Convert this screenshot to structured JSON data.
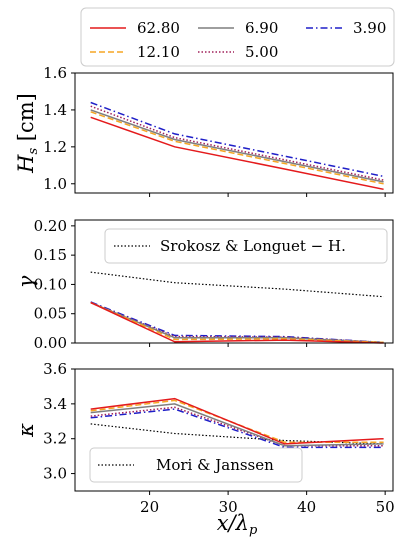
{
  "legend": {
    "entries": [
      {
        "label": "62.80",
        "color": "#e41a1c",
        "dash": "solid"
      },
      {
        "label": "12.10",
        "color": "#f5a623",
        "dash": "dashed"
      },
      {
        "label": "6.90",
        "color": "#7f7f7f",
        "dash": "solid"
      },
      {
        "label": "5.00",
        "color": "#a0205a",
        "dash": "dotted"
      },
      {
        "label": "3.90",
        "color": "#1f1fc8",
        "dash": "dashdot"
      }
    ]
  },
  "chart_data": [
    {
      "type": "line",
      "ylabel": "H_s [cm]",
      "ylim": [
        0.95,
        1.6
      ],
      "yticks": [
        "1.0",
        "1.2",
        "1.4",
        "1.6"
      ],
      "xlim": [
        10.5,
        51
      ],
      "x": [
        12.5,
        23.2,
        37.2,
        49.8
      ],
      "series": [
        {
          "name": "62.80",
          "values": [
            1.36,
            1.2,
            1.08,
            0.97
          ]
        },
        {
          "name": "12.10",
          "values": [
            1.39,
            1.23,
            1.11,
            1.0
          ]
        },
        {
          "name": "6.90",
          "values": [
            1.4,
            1.24,
            1.12,
            1.01
          ]
        },
        {
          "name": "5.00",
          "values": [
            1.42,
            1.25,
            1.13,
            1.02
          ]
        },
        {
          "name": "3.90",
          "values": [
            1.44,
            1.27,
            1.15,
            1.04
          ]
        }
      ]
    },
    {
      "type": "line",
      "ylabel": "γ",
      "ylim": [
        0.0,
        0.21
      ],
      "yticks": [
        "0.00",
        "0.05",
        "0.10",
        "0.15",
        "0.20"
      ],
      "xlim": [
        10.5,
        51
      ],
      "x": [
        12.5,
        23.2,
        37.2,
        49.8
      ],
      "reference": {
        "name": "Srokosz & Longuet − H.",
        "values": [
          0.121,
          0.103,
          0.092,
          0.079
        ]
      },
      "legend_position": "upper-right",
      "series": [
        {
          "name": "62.80",
          "values": [
            0.069,
            0.002,
            0.005,
            0.0
          ]
        },
        {
          "name": "12.10",
          "values": [
            0.069,
            0.006,
            0.007,
            0.001
          ]
        },
        {
          "name": "6.90",
          "values": [
            0.069,
            0.009,
            0.009,
            0.001
          ]
        },
        {
          "name": "5.00",
          "values": [
            0.069,
            0.011,
            0.01,
            0.001
          ]
        },
        {
          "name": "3.90",
          "values": [
            0.07,
            0.013,
            0.011,
            0.001
          ]
        }
      ]
    },
    {
      "type": "line",
      "ylabel": "κ",
      "xlabel": "x/λ_p",
      "ylim": [
        2.9,
        3.6
      ],
      "yticks": [
        "3.0",
        "3.2",
        "3.4",
        "3.6"
      ],
      "xlim": [
        10.5,
        51
      ],
      "xticks": [
        "20",
        "30",
        "40",
        "50"
      ],
      "x": [
        12.5,
        23.2,
        37.2,
        49.8
      ],
      "reference": {
        "name": "Mori & Janssen",
        "values": [
          3.285,
          3.23,
          3.19,
          3.17
        ]
      },
      "legend_position": "lower-left",
      "series": [
        {
          "name": "62.80",
          "values": [
            3.37,
            3.43,
            3.17,
            3.2
          ]
        },
        {
          "name": "12.10",
          "values": [
            3.36,
            3.42,
            3.18,
            3.18
          ]
        },
        {
          "name": "6.90",
          "values": [
            3.35,
            3.4,
            3.16,
            3.17
          ]
        },
        {
          "name": "5.00",
          "values": [
            3.33,
            3.38,
            3.16,
            3.16
          ]
        },
        {
          "name": "3.90",
          "values": [
            3.32,
            3.37,
            3.15,
            3.15
          ]
        }
      ]
    }
  ]
}
